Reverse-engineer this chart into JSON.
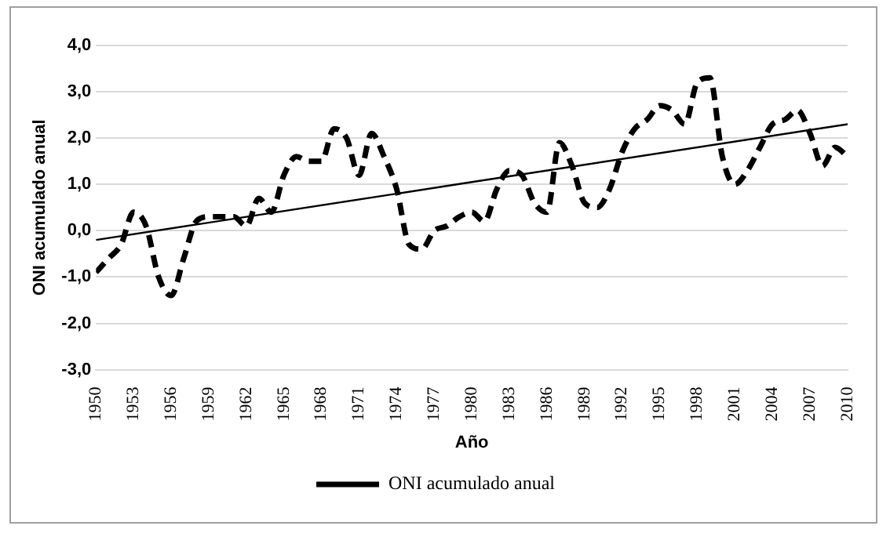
{
  "chart_data": {
    "type": "line",
    "xlabel": "Año",
    "ylabel": "ONI acumulado anual",
    "x": [
      1950,
      1951,
      1952,
      1953,
      1954,
      1955,
      1956,
      1957,
      1958,
      1959,
      1960,
      1961,
      1962,
      1963,
      1964,
      1965,
      1966,
      1967,
      1968,
      1969,
      1970,
      1971,
      1972,
      1973,
      1974,
      1975,
      1976,
      1977,
      1978,
      1979,
      1980,
      1981,
      1982,
      1983,
      1984,
      1985,
      1986,
      1987,
      1988,
      1989,
      1990,
      1991,
      1992,
      1993,
      1994,
      1995,
      1996,
      1997,
      1998,
      1999,
      2000,
      2001,
      2002,
      2003,
      2004,
      2005,
      2006,
      2007,
      2008,
      2009,
      2010
    ],
    "series": [
      {
        "name": "ONI acumulado anual",
        "color": "#000000",
        "line_style": "dashed",
        "values": [
          -0.9,
          -0.6,
          -0.3,
          0.4,
          0.1,
          -1.0,
          -1.4,
          -0.6,
          0.2,
          0.3,
          0.3,
          0.3,
          0.1,
          0.7,
          0.4,
          1.2,
          1.6,
          1.5,
          1.5,
          2.2,
          2.0,
          1.2,
          2.1,
          1.6,
          0.9,
          -0.3,
          -0.4,
          0.0,
          0.1,
          0.3,
          0.4,
          0.2,
          0.9,
          1.3,
          1.2,
          0.6,
          0.4,
          1.9,
          1.4,
          0.6,
          0.5,
          0.9,
          1.7,
          2.2,
          2.4,
          2.7,
          2.6,
          2.3,
          3.2,
          3.3,
          1.6,
          1.0,
          1.3,
          1.8,
          2.3,
          2.4,
          2.6,
          2.1,
          1.4,
          1.8,
          1.6
        ]
      },
      {
        "type": "line",
        "color": "#000000",
        "line_style": "solid",
        "x": [
          1950,
          2010
        ],
        "values": [
          -0.2,
          2.3
        ]
      }
    ],
    "xlim": [
      1950,
      2010
    ],
    "xticks": [
      1950,
      1953,
      1956,
      1959,
      1962,
      1965,
      1968,
      1971,
      1974,
      1977,
      1980,
      1983,
      1986,
      1989,
      1992,
      1995,
      1998,
      2001,
      2004,
      2007,
      2010
    ],
    "ylim": [
      -3,
      4
    ],
    "yticks": [
      {
        "value": -3,
        "label": "-3,0"
      },
      {
        "value": -2,
        "label": "-2,0"
      },
      {
        "value": -1,
        "label": "-1,0"
      },
      {
        "value": 0,
        "label": "0,0"
      },
      {
        "value": 1,
        "label": "1,0"
      },
      {
        "value": 2,
        "label": "2,0"
      },
      {
        "value": 3,
        "label": "3,0"
      },
      {
        "value": 4,
        "label": "4,0"
      }
    ],
    "grid": "y",
    "legend": "bottom",
    "marker": "none"
  }
}
